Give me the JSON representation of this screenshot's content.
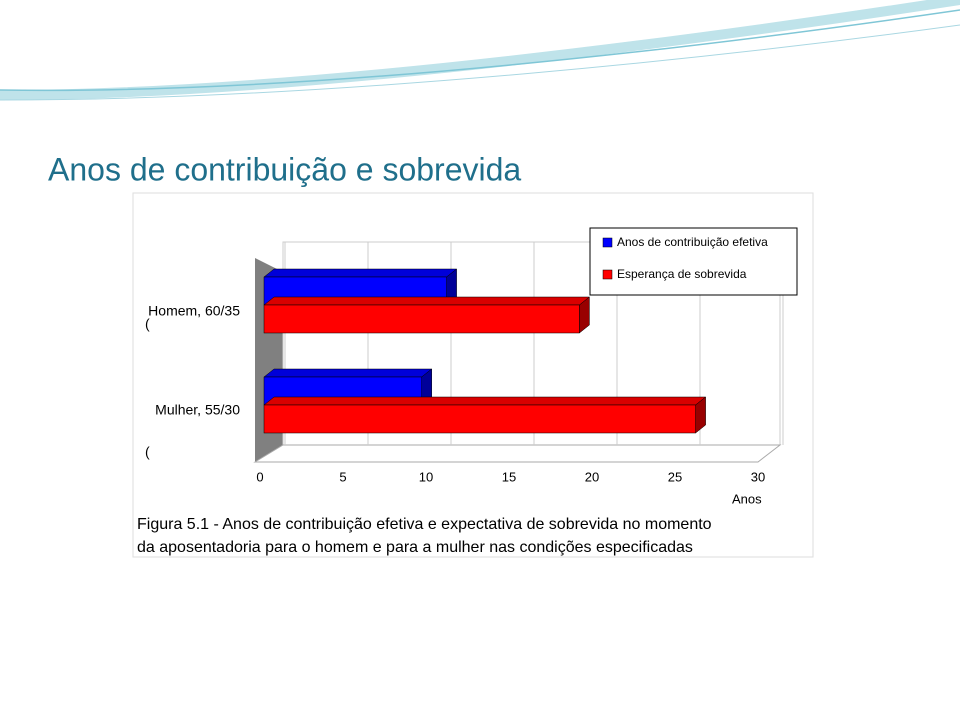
{
  "title": "Anos de contribuição e sobrevida",
  "chart_data": {
    "type": "bar",
    "orientation": "horizontal",
    "categories": [
      "Homem, 60/35",
      "Mulher, 55/30"
    ],
    "category_prefixes": [
      "(",
      "("
    ],
    "series": [
      {
        "name": "Anos de contribuição efetiva",
        "color": "#0000ff",
        "values": [
          11,
          9.5
        ]
      },
      {
        "name": "Esperança de sobrevida",
        "color": "#ff0000",
        "values": [
          19,
          26
        ]
      }
    ],
    "xlabel": "Anos",
    "xlim": [
      0,
      30
    ],
    "xticks": [
      0,
      5,
      10,
      15,
      20,
      25,
      30
    ],
    "grid": true,
    "legend": "top-right"
  },
  "caption": [
    "Figura 5.1 - Anos de contribuição efetiva  e expectativa de sobrevida no momento",
    "da aposentadoria para o homem e para a mulher nas condições especificadas"
  ]
}
